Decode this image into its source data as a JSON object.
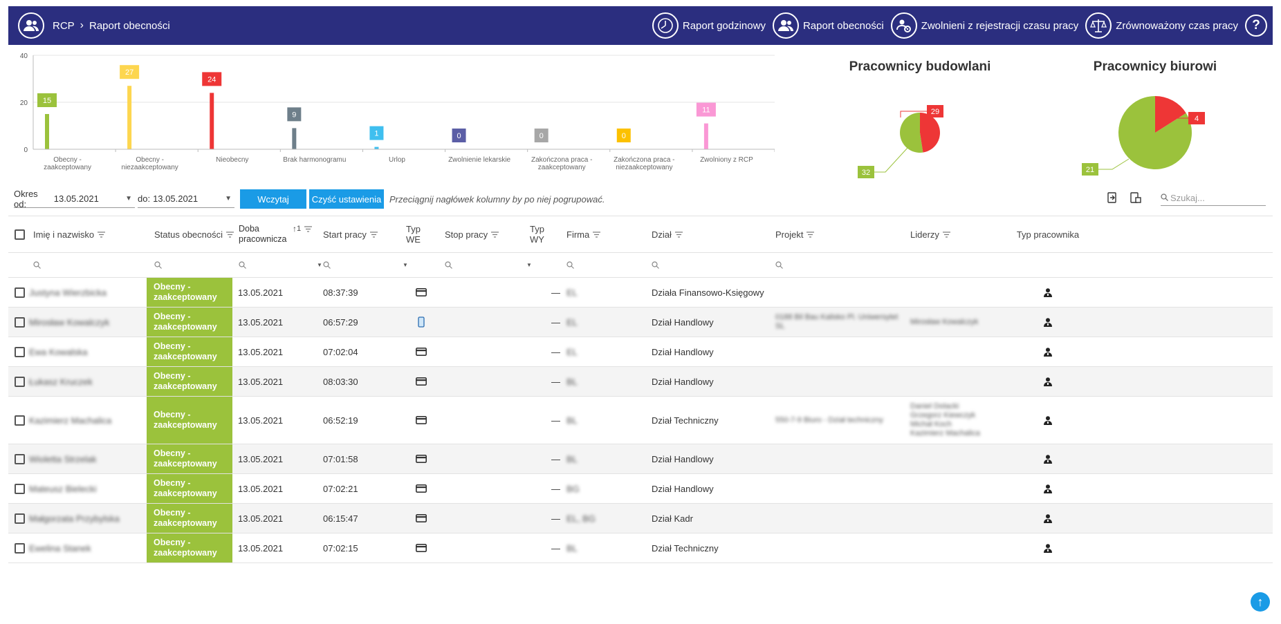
{
  "header": {
    "home_label": "RCP",
    "page_title": "Raport obecności",
    "nav": [
      {
        "label": "Raport godzinowy",
        "icon": "clock-icon"
      },
      {
        "label": "Raport obecności",
        "icon": "people-icon"
      },
      {
        "label": "Zwolnieni z rejestracji czasu pracy",
        "icon": "people-settings-icon"
      },
      {
        "label": "Zrównoważony czas pracy",
        "icon": "scale-icon"
      }
    ],
    "help_label": "?"
  },
  "chart_data": [
    {
      "type": "bar",
      "title": "",
      "categories": [
        "Obecny - zaakceptowany",
        "Obecny - niezaakceptowany",
        "Nieobecny",
        "Brak harmonogramu",
        "Urlop",
        "Zwolnienie lekarskie",
        "Zakończona praca - zaakceptowany",
        "Zakończona praca - niezaakceptowany",
        "Zwolniony z RCP"
      ],
      "category_lines": [
        [
          "Obecny -",
          "zaakceptowany"
        ],
        [
          "Obecny -",
          "niezaakceptowany"
        ],
        [
          "Nieobecny"
        ],
        [
          "Brak harmonogramu"
        ],
        [
          "Urlop"
        ],
        [
          "Zwolnienie lekarskie"
        ],
        [
          "Zakończona praca -",
          "zaakceptowany"
        ],
        [
          "Zakończona praca -",
          "niezaakceptowany"
        ],
        [
          "Zwolniony z RCP"
        ]
      ],
      "values": [
        15,
        27,
        24,
        9,
        1,
        0,
        0,
        0,
        11
      ],
      "value_labels": [
        "15",
        "27",
        "24",
        "9",
        "1",
        "0",
        "0",
        "0",
        "11"
      ],
      "colors": [
        "#9bc23c",
        "#fdd64f",
        "#ee3636",
        "#6e7f8a",
        "#3fbfef",
        "#5b5ea6",
        "#a7a7a7",
        "#fcc100",
        "#fa98d5"
      ],
      "yticks": [
        "0",
        "20",
        "40"
      ],
      "ylim": [
        0,
        40
      ],
      "grid": true
    },
    {
      "type": "pie",
      "title": "Pracownicy budowlani",
      "categories": [
        "green",
        "red"
      ],
      "values": [
        32,
        29
      ],
      "value_labels": [
        "32",
        "29"
      ],
      "colors": [
        "#9bc23c",
        "#ee3636"
      ]
    },
    {
      "type": "pie",
      "title": "Pracownicy biurowi",
      "categories": [
        "green",
        "red"
      ],
      "values": [
        21,
        4
      ],
      "value_labels": [
        "21",
        "4"
      ],
      "colors": [
        "#9bc23c",
        "#ee3636"
      ]
    }
  ],
  "toolbar": {
    "from_label": "Okres od:",
    "from_value": "13.05.2021",
    "to_label": "do:",
    "to_value": "13.05.2021",
    "load_button": "Wczytaj",
    "clear_button": "Czyść ustawienia",
    "group_hint": "Przeciągnij nagłówek kolumny by po niej pogrupować.",
    "search_placeholder": "Szukaj..."
  },
  "table": {
    "columns": {
      "name": "Imię i nazwisko",
      "status": "Status obecności",
      "day": "Doba pracownicza",
      "sort": "1",
      "start": "Start pracy",
      "type_in": "Typ WE",
      "stop": "Stop pracy",
      "type_out": "Typ WY",
      "company": "Firma",
      "dept": "Dział",
      "project": "Projekt",
      "leaders": "Liderzy",
      "emp_type": "Typ pracownika"
    },
    "rows": [
      {
        "name": "Justyna Wierzbicka",
        "status": "Obecny - zaakceptowany",
        "day": "13.05.2021",
        "start": "08:37:39",
        "type_in": "card",
        "type_out": "—",
        "company": "EL",
        "dept": "Działa Finansowo-Księgowy",
        "project": "",
        "leaders": []
      },
      {
        "name": "Mirosław Kowalczyk",
        "status": "Obecny - zaakceptowany",
        "day": "13.05.2021",
        "start": "06:57:29",
        "type_in": "phone",
        "type_out": "—",
        "company": "EL",
        "dept": "Dział Handlowy",
        "project": "0188 Bil Bau Kalisko Pl. Uniwersytet SL",
        "leaders": [
          "Mirosław Kowalczyk"
        ]
      },
      {
        "name": "Ewa Kowalska",
        "status": "Obecny - zaakceptowany",
        "day": "13.05.2021",
        "start": "07:02:04",
        "type_in": "card",
        "type_out": "—",
        "company": "EL",
        "dept": "Dział Handlowy",
        "project": "",
        "leaders": []
      },
      {
        "name": "Łukasz Kruczek",
        "status": "Obecny - zaakceptowany",
        "day": "13.05.2021",
        "start": "08:03:30",
        "type_in": "card",
        "type_out": "—",
        "company": "BL",
        "dept": "Dział Handlowy",
        "project": "",
        "leaders": []
      },
      {
        "name": "Kazimierz Machalica",
        "status": "Obecny - zaakceptowany",
        "day": "13.05.2021",
        "start": "06:52:19",
        "type_in": "card",
        "type_out": "—",
        "company": "BL",
        "dept": "Dział Techniczny",
        "project": "550-7-9 Biuro - Dział techniczny",
        "leaders": [
          "Daniel Dolacki",
          "Grzegorz Kiewczyk",
          "Michał Koch",
          "Kazimierz Machalica"
        ]
      },
      {
        "name": "Wioletta Strzelak",
        "status": "Obecny - zaakceptowany",
        "day": "13.05.2021",
        "start": "07:01:58",
        "type_in": "card",
        "type_out": "—",
        "company": "BL",
        "dept": "Dział Handlowy",
        "project": "",
        "leaders": []
      },
      {
        "name": "Mateusz Bielecki",
        "status": "Obecny - zaakceptowany",
        "day": "13.05.2021",
        "start": "07:02:21",
        "type_in": "card",
        "type_out": "—",
        "company": "BG",
        "dept": "Dział Handlowy",
        "project": "",
        "leaders": []
      },
      {
        "name": "Małgorzata Przybylska",
        "status": "Obecny - zaakceptowany",
        "day": "13.05.2021",
        "start": "06:15:47",
        "type_in": "card",
        "type_out": "—",
        "company": "EL, BG",
        "dept": "Dział Kadr",
        "project": "",
        "leaders": []
      },
      {
        "name": "Ewelina Stanek",
        "status": "Obecny - zaakceptowany",
        "day": "13.05.2021",
        "start": "07:02:15",
        "type_in": "card",
        "type_out": "—",
        "company": "BL",
        "dept": "Dział Techniczny",
        "project": "",
        "leaders": []
      }
    ]
  }
}
